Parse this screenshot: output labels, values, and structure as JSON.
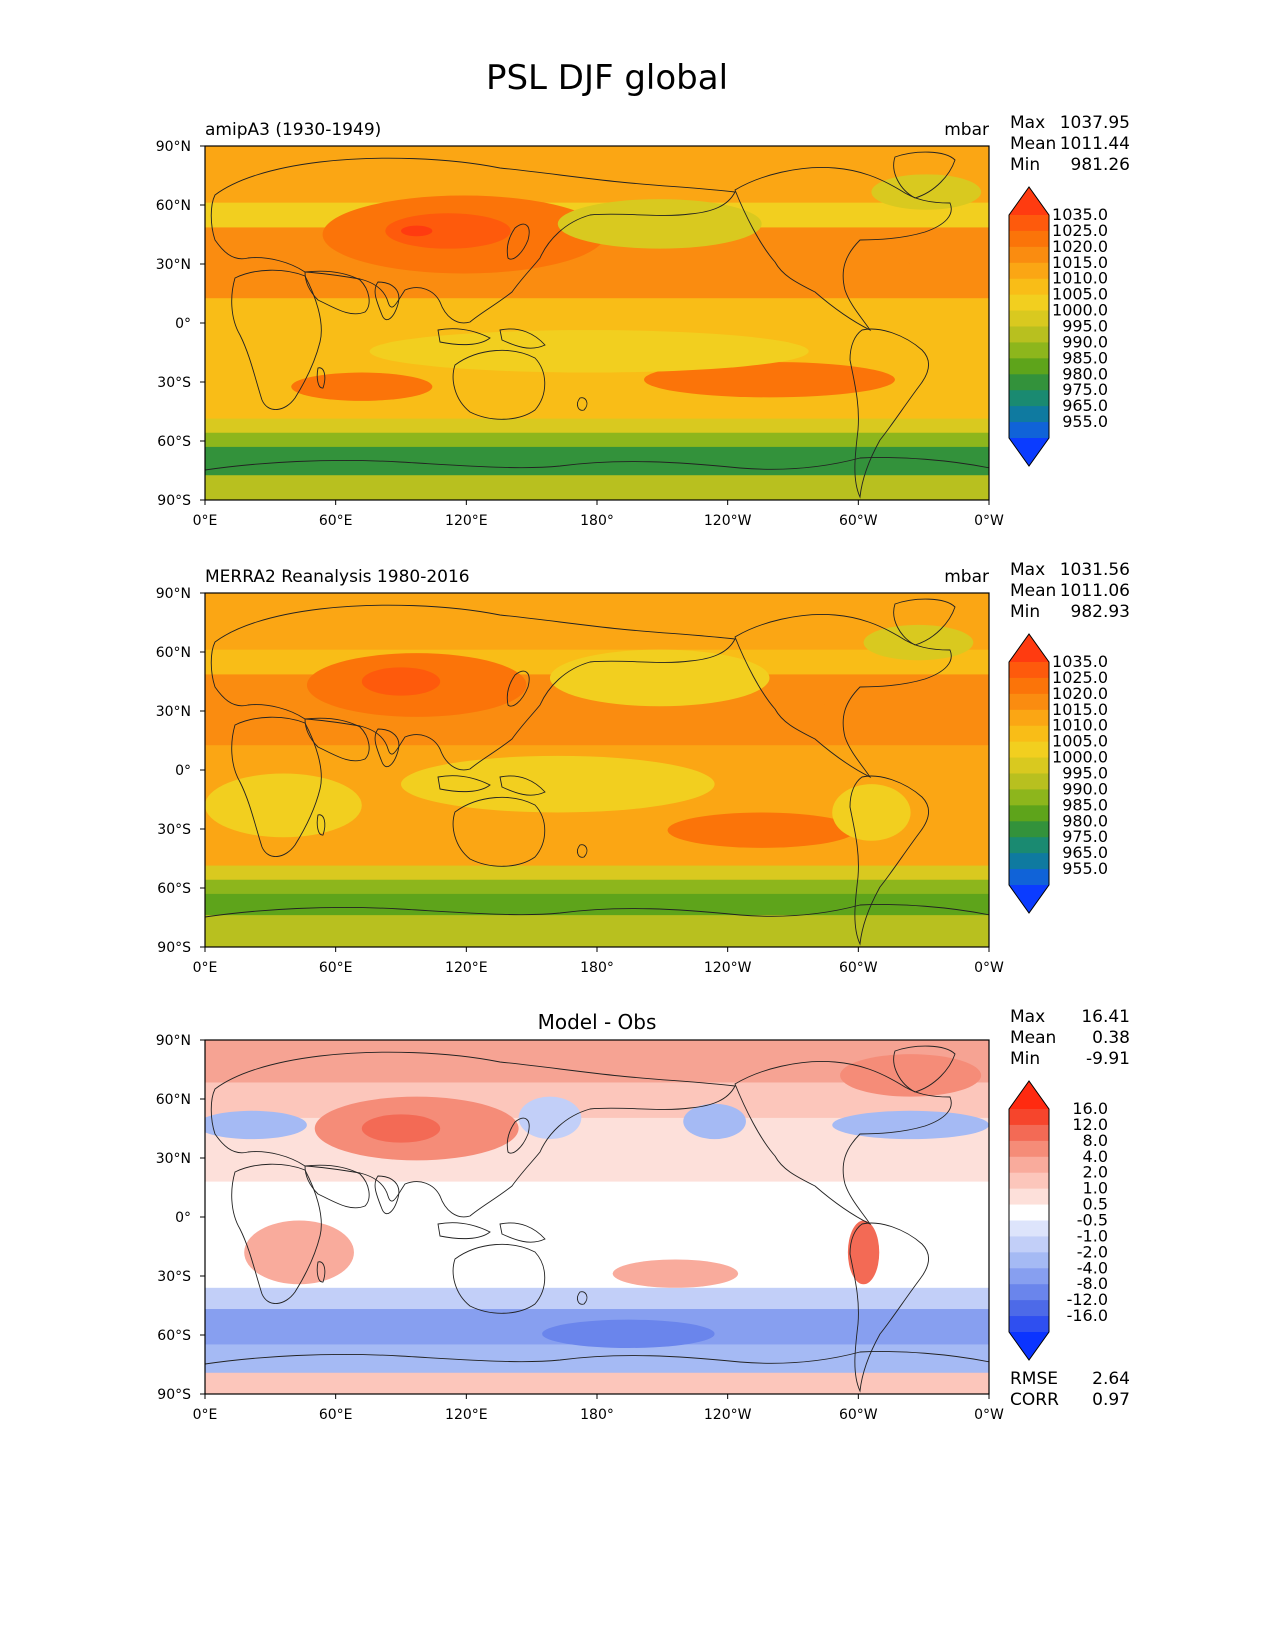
{
  "figure": {
    "title": "PSL DJF global"
  },
  "axis_labels": {
    "lat": [
      "90°N",
      "60°N",
      "30°N",
      "0°",
      "30°S",
      "60°S",
      "90°S"
    ],
    "lon": [
      "0°E",
      "60°E",
      "120°E",
      "180°",
      "120°W",
      "60°W",
      "0°W"
    ]
  },
  "panels": [
    {
      "left_title": "amipA3 (1930-1949)",
      "center_title": "",
      "units": "mbar",
      "stats": [
        {
          "label": "Max",
          "value": "1037.95"
        },
        {
          "label": "Mean",
          "value": "1011.44"
        },
        {
          "label": "Min",
          "value": "981.26"
        }
      ],
      "colorbar": {
        "levels": [
          "1035.0",
          "1025.0",
          "1020.0",
          "1015.0",
          "1010.0",
          "1005.0",
          "1000.0",
          "995.0",
          "990.0",
          "985.0",
          "980.0",
          "975.0",
          "965.0",
          "955.0"
        ],
        "colors": [
          "#ff3b10",
          "#fe5a0c",
          "#fb7409",
          "#fa8c10",
          "#fba614",
          "#f9bd17",
          "#f2cf1f",
          "#d9c91f",
          "#b8c01f",
          "#8db61c",
          "#5ea41b",
          "#33923b",
          "#1a8a71",
          "#0f7aa0",
          "#1063d8",
          "#0b3cff"
        ]
      }
    },
    {
      "left_title": "MERRA2 Reanalysis 1980-2016",
      "center_title": "",
      "units": "mbar",
      "stats": [
        {
          "label": "Max",
          "value": "1031.56"
        },
        {
          "label": "Mean",
          "value": "1011.06"
        },
        {
          "label": "Min",
          "value": "982.93"
        }
      ],
      "colorbar": {
        "levels": [
          "1035.0",
          "1025.0",
          "1020.0",
          "1015.0",
          "1010.0",
          "1005.0",
          "1000.0",
          "995.0",
          "990.0",
          "985.0",
          "980.0",
          "975.0",
          "965.0",
          "955.0"
        ],
        "colors": [
          "#ff3b10",
          "#fe5a0c",
          "#fb7409",
          "#fa8c10",
          "#fba614",
          "#f9bd17",
          "#f2cf1f",
          "#d9c91f",
          "#b8c01f",
          "#8db61c",
          "#5ea41b",
          "#33923b",
          "#1a8a71",
          "#0f7aa0",
          "#1063d8",
          "#0b3cff"
        ]
      }
    },
    {
      "left_title": "",
      "center_title": "Model - Obs",
      "units": "",
      "stats": [
        {
          "label": "Max",
          "value": "16.41"
        },
        {
          "label": "Mean",
          "value": "0.38"
        },
        {
          "label": "Min",
          "value": "-9.91"
        }
      ],
      "colorbar": {
        "levels": [
          "16.0",
          "12.0",
          "8.0",
          "4.0",
          "2.0",
          "1.0",
          "0.5",
          "-0.5",
          "-1.0",
          "-2.0",
          "-4.0",
          "-8.0",
          "-12.0",
          "-16.0"
        ],
        "colors": [
          "#ff2a10",
          "#f6452c",
          "#f36a55",
          "#f58c78",
          "#f9ab9c",
          "#fcc6bb",
          "#fde0da",
          "#ffffff",
          "#dde4fb",
          "#c2cff8",
          "#a5baf4",
          "#879ff0",
          "#6a85ec",
          "#4d6ae8",
          "#2f4ff0",
          "#0b34ff"
        ]
      },
      "footer": [
        {
          "label": "RMSE",
          "value": "2.64"
        },
        {
          "label": "CORR",
          "value": "0.97"
        }
      ]
    }
  ]
}
